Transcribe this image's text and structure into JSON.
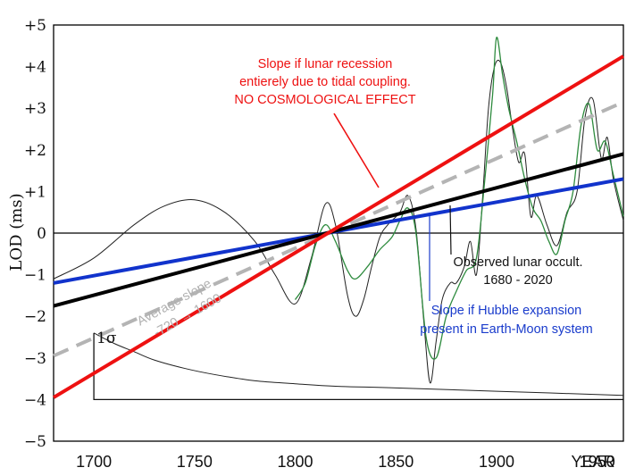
{
  "chart_data": {
    "type": "line",
    "title": "",
    "xlabel": "YEAR",
    "ylabel": "LOD (ms)",
    "xlim": [
      1680,
      1963
    ],
    "ylim": [
      -5,
      5
    ],
    "x_ticks": [
      "1700",
      "1750",
      "1800",
      "1850",
      "1900",
      "1950"
    ],
    "x_tick_values": [
      1700,
      1750,
      1800,
      1850,
      1900,
      1950
    ],
    "x_axis_end_label": "YEAR",
    "y_ticks": [
      "+5",
      "+4",
      "+3",
      "+2",
      "+1",
      "0",
      "−1",
      "−2",
      "−3",
      "−4",
      "−5"
    ],
    "y_tick_values": [
      5,
      4,
      3,
      2,
      1,
      0,
      -1,
      -2,
      -3,
      -4,
      -5
    ],
    "colors": {
      "tidal": "#ee1111",
      "average": "#000000",
      "average_dashed": "#b4b4b4",
      "hubble": "#1133cc",
      "observed": "#222222",
      "observed_green": "#2e8b3e",
      "annotation_red": "#ee1111",
      "annotation_blue": "#1a3ccc"
    },
    "series": [
      {
        "name": "Slope if lunar recession entierely due to tidal coupling",
        "style": "red-line",
        "x": [
          1680,
          1963
        ],
        "y": [
          -3.95,
          4.25
        ]
      },
      {
        "name": "Average slope -720 → 1600 (solid)",
        "style": "black-line",
        "x": [
          1680,
          1963
        ],
        "y": [
          -1.75,
          1.9
        ]
      },
      {
        "name": "Average slope -720 → 1600 (dashed)",
        "style": "gray-dashed",
        "x": [
          1680,
          1963
        ],
        "y": [
          -2.95,
          3.15
        ]
      },
      {
        "name": "Slope if Hubble expansion present in Earth-Moon system",
        "style": "blue-line",
        "x": [
          1680,
          1963
        ],
        "y": [
          -1.2,
          1.3
        ]
      },
      {
        "name": "Observed lunar occultations 1680 - 2020",
        "style": "thin-black",
        "x": [
          1680,
          1700,
          1720,
          1735,
          1750,
          1765,
          1780,
          1790,
          1800,
          1808,
          1815,
          1820,
          1826,
          1830,
          1834,
          1838,
          1842,
          1846,
          1852,
          1856,
          1860,
          1864,
          1867,
          1870,
          1873,
          1877,
          1880,
          1884,
          1887,
          1890,
          1893,
          1896,
          1899,
          1902,
          1905,
          1908,
          1911,
          1914,
          1917,
          1920,
          1925,
          1930,
          1935,
          1940,
          1944,
          1948,
          1952,
          1955,
          1958,
          1963
        ],
        "y": [
          -1.1,
          -0.6,
          0.2,
          0.65,
          0.8,
          0.5,
          -0.2,
          -1.0,
          -1.7,
          -0.6,
          0.7,
          0.2,
          -1.5,
          -2.0,
          -1.6,
          -0.8,
          -0.1,
          0.2,
          0.5,
          0.9,
          0.1,
          -2.2,
          -3.6,
          -2.6,
          -1.6,
          -1.2,
          -1.2,
          -0.8,
          -0.2,
          -1.0,
          0.8,
          3.0,
          4.0,
          4.1,
          3.5,
          2.5,
          1.7,
          1.9,
          0.4,
          0.9,
          0.2,
          -0.3,
          0.5,
          1.0,
          2.8,
          3.2,
          1.8,
          2.3,
          1.3,
          0.3
        ]
      },
      {
        "name": "Observed (green detail)",
        "style": "thin-green",
        "x": [
          1800,
          1805,
          1810,
          1815,
          1820,
          1826,
          1830,
          1836,
          1842,
          1848,
          1852,
          1856,
          1860,
          1865,
          1870,
          1875,
          1880,
          1885,
          1890,
          1894,
          1898,
          1900,
          1903,
          1906,
          1910,
          1914,
          1918,
          1922,
          1926,
          1930,
          1934,
          1938,
          1942,
          1946,
          1950,
          1954,
          1958,
          1963
        ],
        "y": [
          -1.6,
          -1.2,
          -0.3,
          0.2,
          -0.2,
          -0.9,
          -1.1,
          -0.8,
          -0.4,
          -0.1,
          0.3,
          0.6,
          0.0,
          -2.5,
          -3.0,
          -2.0,
          -1.4,
          -0.9,
          -0.6,
          1.2,
          3.3,
          4.7,
          3.8,
          3.0,
          2.2,
          1.3,
          0.6,
          0.3,
          -0.2,
          -0.5,
          0.3,
          1.0,
          2.6,
          3.1,
          2.0,
          2.2,
          1.4,
          0.4
        ]
      },
      {
        "name": "1 sigma uncertainty envelope",
        "style": "thin-black",
        "x": [
          1700,
          1710,
          1720,
          1730,
          1745,
          1760,
          1780,
          1800,
          1820,
          1850,
          1900,
          1963
        ],
        "y": [
          -2.4,
          -2.65,
          -2.85,
          -3.05,
          -3.25,
          -3.4,
          -3.55,
          -3.62,
          -3.68,
          -3.72,
          -3.8,
          -3.9
        ]
      }
    ],
    "baseline": {
      "from": -4.0,
      "x": [
        1700,
        1963
      ],
      "label": "1σ"
    },
    "annotations": {
      "tidal": [
        "Slope if lunar recession",
        "entierely due to tidal coupling.",
        "NO  COSMOLOGICAL EFFECT"
      ],
      "average": [
        "Average slope",
        "-720 → 1600"
      ],
      "observed": [
        "Observed lunar occult.",
        "1680 - 2020"
      ],
      "hubble": [
        "Slope if Hubble expansion",
        "present in Earth-Moon system"
      ],
      "sigma": "1σ"
    }
  }
}
